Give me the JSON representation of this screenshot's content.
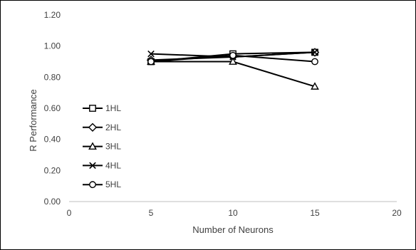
{
  "chart_data": {
    "type": "line",
    "title": "",
    "xlabel": "Number of Neurons",
    "ylabel": "R Performance",
    "xlim": [
      0,
      20
    ],
    "ylim": [
      0,
      1.2
    ],
    "x_ticks": [
      "0",
      "5",
      "10",
      "15",
      "20"
    ],
    "y_ticks": [
      "0.00",
      "0.20",
      "0.40",
      "0.60",
      "0.80",
      "1.00",
      "1.20"
    ],
    "grid": false,
    "legend_position": "left",
    "x": [
      5,
      10,
      15
    ],
    "series": [
      {
        "name": "1HL",
        "marker": "square",
        "values": [
          0.9,
          0.95,
          0.96
        ]
      },
      {
        "name": "2HL",
        "marker": "diamond",
        "values": [
          0.91,
          0.93,
          0.96
        ]
      },
      {
        "name": "3HL",
        "marker": "triangle",
        "values": [
          0.9,
          0.9,
          0.74
        ]
      },
      {
        "name": "4HL",
        "marker": "x",
        "values": [
          0.95,
          0.93,
          0.96
        ]
      },
      {
        "name": "5HL",
        "marker": "circle",
        "values": [
          0.9,
          0.94,
          0.9
        ]
      }
    ],
    "line_color": "#000000",
    "axis_color": "#bfbfbf",
    "text_color": "#404040"
  }
}
